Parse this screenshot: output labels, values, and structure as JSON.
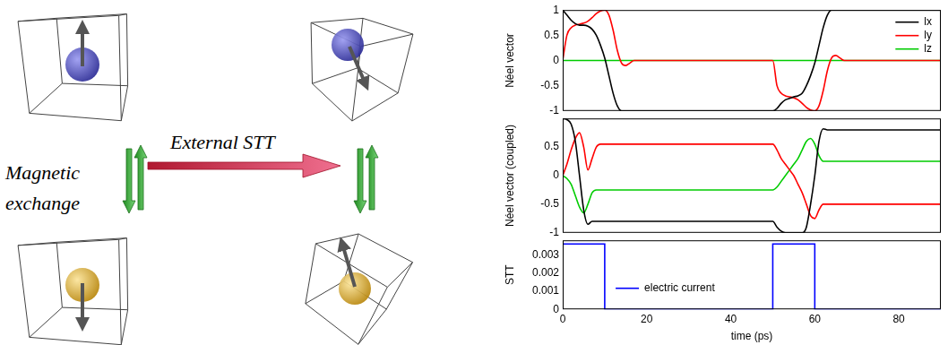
{
  "chart_data": [
    {
      "type": "line",
      "y_label": "Néel vector",
      "x": [
        0,
        1,
        2,
        3,
        4,
        5,
        6,
        7,
        8,
        9,
        10,
        11,
        12,
        13,
        14,
        15,
        16,
        17,
        20,
        30,
        40,
        50,
        51,
        52,
        53,
        54,
        55,
        56,
        57,
        58,
        59,
        60,
        61,
        62,
        63,
        64,
        65,
        66,
        67,
        70,
        80,
        90
      ],
      "series": [
        {
          "name": "lx",
          "color": "#000000",
          "values": [
            1,
            0.9,
            0.8,
            0.73,
            0.7,
            0.7,
            0.68,
            0.62,
            0.5,
            0.3,
            0.05,
            -0.3,
            -0.65,
            -0.9,
            -1,
            -1,
            -1,
            -1,
            -1,
            -1,
            -1,
            -1,
            -0.95,
            -0.85,
            -0.78,
            -0.75,
            -0.72,
            -0.7,
            -0.65,
            -0.5,
            -0.3,
            -0.05,
            0.3,
            0.65,
            0.9,
            1,
            1,
            1,
            1,
            1,
            1,
            1
          ]
        },
        {
          "name": "ly",
          "color": "#ff0000",
          "values": [
            0,
            0.5,
            0.65,
            0.7,
            0.72,
            0.74,
            0.78,
            0.85,
            0.93,
            0.98,
            1,
            0.9,
            0.6,
            0.2,
            -0.05,
            -0.1,
            -0.05,
            0,
            0,
            0,
            0,
            0,
            -0.5,
            -0.65,
            -0.7,
            -0.72,
            -0.74,
            -0.78,
            -0.85,
            -0.93,
            -0.98,
            -1,
            -0.9,
            -0.6,
            -0.2,
            0.05,
            0.1,
            0.05,
            0,
            0,
            0,
            0
          ]
        },
        {
          "name": "lz",
          "color": "#00cc00",
          "values": [
            0,
            0,
            0,
            0,
            0,
            0,
            0,
            0,
            0,
            0,
            0,
            0,
            0,
            0,
            0,
            0,
            0,
            0,
            0,
            0,
            0,
            0,
            0,
            0,
            0,
            0,
            0,
            0,
            0,
            0,
            0,
            0,
            0,
            0,
            0,
            0,
            0,
            0,
            0,
            0,
            0,
            0
          ]
        }
      ],
      "xlim": [
        0,
        90
      ],
      "ylim": [
        -1,
        1
      ],
      "yticks": [
        -1,
        -0.5,
        0,
        0.5,
        1
      ],
      "grid": false,
      "legend": "upper right",
      "tick_labels": "y"
    },
    {
      "type": "line",
      "y_label": "Néel vector (coupled)",
      "x": [
        0,
        1,
        2,
        3,
        4,
        5,
        6,
        7,
        8,
        9,
        10,
        11,
        12,
        13,
        14,
        15,
        16,
        17,
        20,
        30,
        40,
        50,
        51,
        52,
        53,
        54,
        55,
        56,
        57,
        58,
        59,
        60,
        61,
        62,
        63,
        64,
        65,
        66,
        67,
        70,
        80,
        90
      ],
      "series": [
        {
          "color": "#000000",
          "values": [
            1,
            0.98,
            0.9,
            0.6,
            0,
            -0.6,
            -0.85,
            -0.8,
            -0.8,
            -0.8,
            -0.8,
            -0.8,
            -0.8,
            -0.8,
            -0.8,
            -0.8,
            -0.8,
            -0.8,
            -0.8,
            -0.8,
            -0.8,
            -0.8,
            -0.9,
            -0.97,
            -1,
            -1,
            -1,
            -1,
            -1,
            -0.9,
            -0.5,
            0,
            0.6,
            0.82,
            0.8,
            0.8,
            0.8,
            0.8,
            0.8,
            0.8,
            0.8,
            0.8
          ]
        },
        {
          "color": "#ff0000",
          "values": [
            0,
            0.2,
            0.45,
            0.65,
            0.75,
            0.5,
            0.1,
            0.3,
            0.5,
            0.55,
            0.55,
            0.55,
            0.55,
            0.55,
            0.55,
            0.55,
            0.55,
            0.55,
            0.55,
            0.55,
            0.55,
            0.55,
            0.45,
            0.3,
            0.2,
            0.1,
            0,
            -0.15,
            -0.3,
            -0.5,
            -0.7,
            -0.75,
            -0.6,
            -0.5,
            -0.5,
            -0.5,
            -0.5,
            -0.5,
            -0.5,
            -0.5,
            -0.5,
            -0.5
          ]
        },
        {
          "color": "#00cc00",
          "values": [
            0,
            -0.05,
            -0.15,
            -0.35,
            -0.55,
            -0.65,
            -0.5,
            -0.3,
            -0.25,
            -0.25,
            -0.25,
            -0.25,
            -0.25,
            -0.25,
            -0.25,
            -0.25,
            -0.25,
            -0.25,
            -0.25,
            -0.25,
            -0.25,
            -0.25,
            -0.2,
            -0.1,
            0,
            0.1,
            0.2,
            0.3,
            0.45,
            0.6,
            0.65,
            0.55,
            0.35,
            0.25,
            0.25,
            0.25,
            0.25,
            0.25,
            0.25,
            0.25,
            0.25,
            0.25
          ]
        }
      ],
      "xlim": [
        0,
        90
      ],
      "ylim": [
        -1,
        1
      ],
      "yticks": [
        -1,
        -0.5,
        0,
        0.5
      ],
      "grid": false,
      "tick_labels": "y"
    },
    {
      "type": "line",
      "y_label": "STT",
      "x_label": "time (ps)",
      "x": [
        0,
        0,
        10,
        10,
        50,
        50,
        60,
        60,
        90
      ],
      "series": [
        {
          "name": "electric current",
          "color": "#0000ff",
          "values": [
            0,
            0.0036,
            0.0036,
            0,
            0,
            0.0036,
            0.0036,
            0,
            0
          ]
        }
      ],
      "xlim": [
        0,
        90
      ],
      "xticks": [
        0,
        20,
        40,
        60,
        80
      ],
      "ylim": [
        0,
        0.0038
      ],
      "yticks": [
        0,
        0.001,
        0.002,
        0.003
      ],
      "grid": false,
      "legend": "lower left"
    }
  ],
  "diagram": {
    "left_label": "Magnetic exchange",
    "arrow_label": "External STT"
  }
}
